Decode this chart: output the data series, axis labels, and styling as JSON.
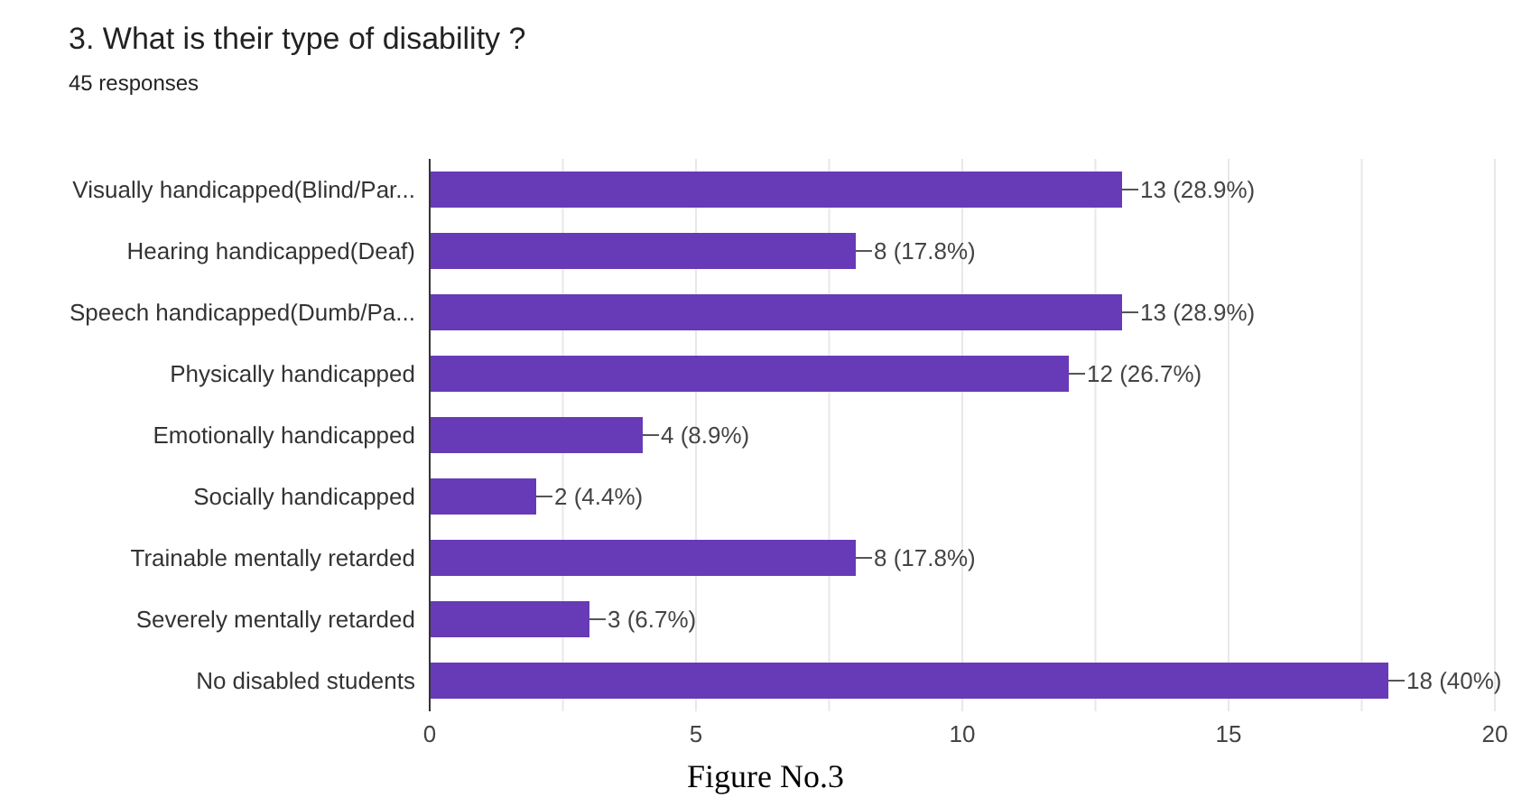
{
  "chart_data": {
    "type": "bar",
    "orientation": "horizontal",
    "title": "3. What is their type of disability ?",
    "subtitle": "45 responses",
    "categories": [
      "Visually handicapped(Blind/Par...",
      "Hearing handicapped(Deaf)",
      "Speech handicapped(Dumb/Pa...",
      "Physically handicapped",
      "Emotionally handicapped",
      "Socially handicapped",
      "Trainable mentally retarded",
      "Severely mentally retarded",
      "No disabled students"
    ],
    "values": [
      13,
      8,
      13,
      12,
      4,
      2,
      8,
      3,
      18
    ],
    "value_labels": [
      "13 (28.9%)",
      "8 (17.8%)",
      "13 (28.9%)",
      "12 (26.7%)",
      "4 (8.9%)",
      "2 (4.4%)",
      "8 (17.8%)",
      "3 (6.7%)",
      "18 (40%)"
    ],
    "color": "#673ab7",
    "xlim": [
      0,
      20
    ],
    "xticks": [
      0,
      {
        "value": 2.5,
        "label": null
      },
      5,
      {
        "value": 7.5,
        "label": null
      },
      10,
      {
        "value": 12.5,
        "label": null
      },
      15,
      {
        "value": 17.5,
        "label": null
      },
      20
    ],
    "grid": "x",
    "annotations": [
      "Figure No.3"
    ]
  }
}
